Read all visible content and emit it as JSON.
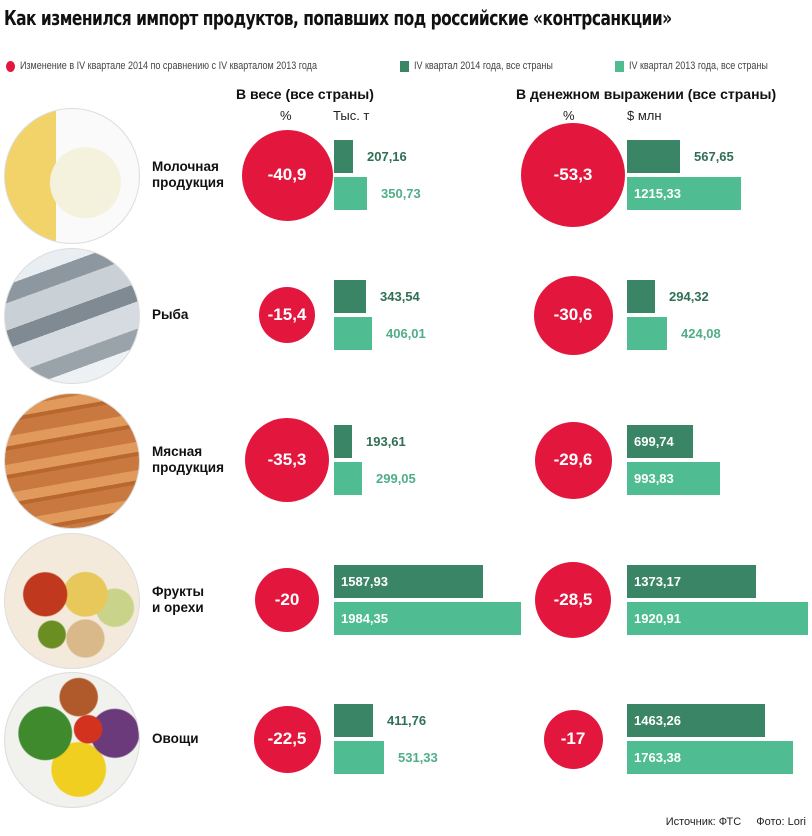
{
  "title": "Как изменился импорт продуктов, попавших под российские «контрсанкции»",
  "legend": [
    {
      "label": "Изменение в IV квартале 2014 по сравнению с IV кварталом 2013 года",
      "color": "#e3173e",
      "shape": "circle"
    },
    {
      "label": "IV квартал 2014 года, все страны",
      "color": "#3a8566",
      "shape": "square"
    },
    {
      "label": "IV квартал 2013 года, все страны",
      "color": "#4fbd91",
      "shape": "square"
    }
  ],
  "columns": {
    "weight": {
      "title": "В весе (все страны)",
      "pct_label": "%",
      "unit_label": "Тыс. т"
    },
    "money": {
      "title": "В денежном выражении (все страны)",
      "pct_label": "%",
      "unit_label": "$ млн"
    }
  },
  "chart_data": {
    "type": "bar",
    "title": "Как изменился импорт продуктов, попавших под российские «контрсанкции»",
    "categories": [
      "Молочная продукция",
      "Рыба",
      "Мясная продукция",
      "Фрукты и орехи",
      "Овощи"
    ],
    "weight": {
      "unit": "Тыс. т",
      "change_pct": [
        "-40,9",
        "-15,4",
        "-35,3",
        "-20",
        "-22,5"
      ],
      "change_values": [
        -40.9,
        -15.4,
        -35.3,
        -20,
        -22.5
      ],
      "series": [
        {
          "name": "IV квартал 2014 года, все страны",
          "values": [
            207.16,
            343.54,
            193.61,
            1587.93,
            411.76
          ],
          "labels": [
            "207,16",
            "343,54",
            "193,61",
            "1587,93",
            "411,76"
          ]
        },
        {
          "name": "IV квартал 2013 года, все страны",
          "values": [
            350.73,
            406.01,
            299.05,
            1984.35,
            531.33
          ],
          "labels": [
            "350,73",
            "406,01",
            "299,05",
            "1984,35",
            "531,33"
          ]
        }
      ]
    },
    "money": {
      "unit": "$ млн",
      "change_pct": [
        "-53,3",
        "-30,6",
        "-29,6",
        "-28,5",
        "-17"
      ],
      "change_values": [
        -53.3,
        -30.6,
        -29.6,
        -28.5,
        -17
      ],
      "series": [
        {
          "name": "IV квартал 2014 года, все страны",
          "values": [
            567.65,
            294.32,
            699.74,
            1373.17,
            1463.26
          ],
          "labels": [
            "567,65",
            "294,32",
            "699,74",
            "1373,17",
            "1463,26"
          ]
        },
        {
          "name": "IV квартал 2013 года, все страны",
          "values": [
            1215.33,
            424.08,
            993.83,
            1920.91,
            1763.38
          ],
          "labels": [
            "1215,33",
            "424,08",
            "993,83",
            "1920,91",
            "1763,38"
          ]
        }
      ]
    }
  },
  "rows": [
    {
      "label": "Молочная\nпродукция",
      "photo": "milk-cheese-photo"
    },
    {
      "label": "Рыба",
      "photo": "fish-photo"
    },
    {
      "label": "Мясная\nпродукция",
      "photo": "sausages-photo"
    },
    {
      "label": "Фрукты\nи орехи",
      "photo": "fruits-nuts-photo"
    },
    {
      "label": "Овощи",
      "photo": "vegetables-photo"
    }
  ],
  "footer": {
    "source": "Источник: ФТС",
    "photo_credit": "Фото: Lori"
  }
}
